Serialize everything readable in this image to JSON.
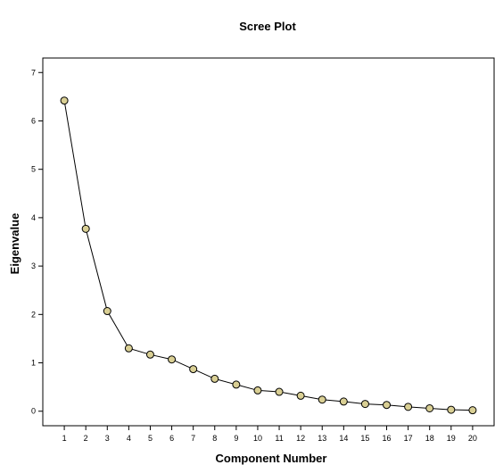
{
  "chart_data": {
    "type": "line",
    "title": "Scree Plot",
    "xlabel": "Component Number",
    "ylabel": "Eigenvalue",
    "x": [
      1,
      2,
      3,
      4,
      5,
      6,
      7,
      8,
      9,
      10,
      11,
      12,
      13,
      14,
      15,
      16,
      17,
      18,
      19,
      20
    ],
    "x_tick_labels": [
      "1",
      "2",
      "3",
      "4",
      "5",
      "6",
      "7",
      "8",
      "9",
      "10",
      "11",
      "12",
      "13",
      "14",
      "15",
      "16",
      "17",
      "18",
      "19",
      "20"
    ],
    "y_tick_labels": [
      "0",
      "1",
      "2",
      "3",
      "4",
      "5",
      "6",
      "7"
    ],
    "series": [
      {
        "values": [
          6.42,
          3.77,
          2.07,
          1.3,
          1.17,
          1.07,
          0.87,
          0.67,
          0.55,
          0.43,
          0.4,
          0.32,
          0.24,
          0.2,
          0.15,
          0.13,
          0.09,
          0.06,
          0.03,
          0.02
        ]
      }
    ],
    "ylim": [
      -0.3,
      7.3
    ],
    "xlim": [
      0,
      21
    ],
    "grid": false,
    "colors": {
      "point_fill": "#d9cf94",
      "line": "#000000"
    }
  }
}
